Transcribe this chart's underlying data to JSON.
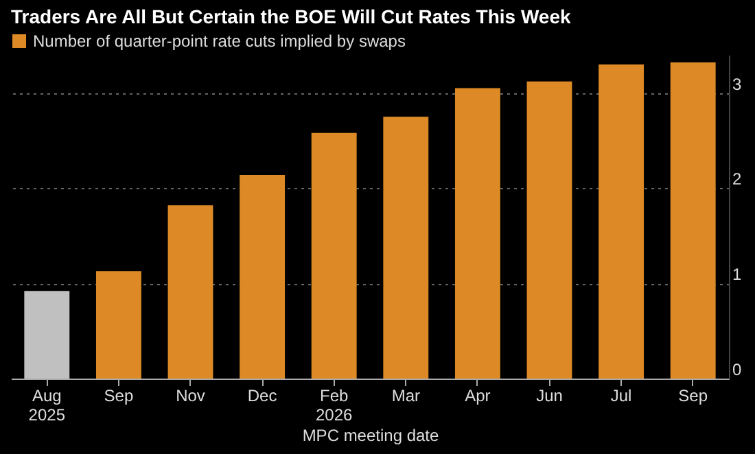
{
  "chart_data": {
    "type": "bar",
    "title": "Traders Are All But Certain the BOE Will Cut Rates This Week",
    "categories": [
      "Aug 2025",
      "Sep",
      "Nov",
      "Dec",
      "Feb 2026",
      "Mar",
      "Apr",
      "Jun",
      "Jul",
      "Sep"
    ],
    "xlabel": "MPC meeting date",
    "series": [
      {
        "name": "Number of quarter-point rate cuts implied by swaps",
        "color": "#dd8a26",
        "colors": [
          "#c0c0c0",
          "#dd8a26",
          "#dd8a26",
          "#dd8a26",
          "#dd8a26",
          "#dd8a26",
          "#dd8a26",
          "#dd8a26",
          "#dd8a26",
          "#dd8a26"
        ],
        "values": [
          0.92,
          1.13,
          1.82,
          2.14,
          2.58,
          2.75,
          3.05,
          3.12,
          3.3,
          3.32
        ]
      }
    ],
    "ylim": [
      0,
      3.4
    ],
    "yticks": [
      0,
      1,
      2,
      3
    ],
    "grid": "y",
    "legend": "top left"
  }
}
